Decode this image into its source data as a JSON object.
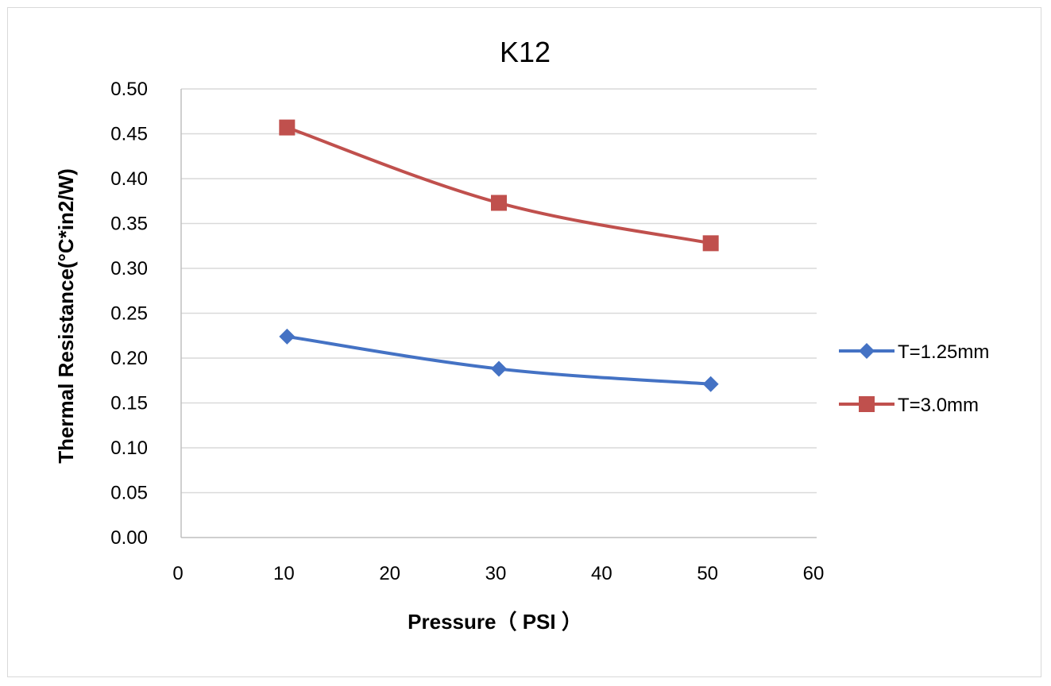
{
  "chart_data": {
    "type": "line",
    "title": "K12",
    "xlabel": "Pressure（ PSI ）",
    "ylabel": "Thermal Resistance(°C*in2/W)",
    "xlim": [
      0,
      60
    ],
    "ylim": [
      0,
      0.5
    ],
    "x_ticks": [
      "0",
      "10",
      "20",
      "30",
      "40",
      "50",
      "60"
    ],
    "y_ticks": [
      "0.00",
      "0.05",
      "0.10",
      "0.15",
      "0.20",
      "0.25",
      "0.30",
      "0.35",
      "0.40",
      "0.45",
      "0.50"
    ],
    "grid": true,
    "legend_position": "right",
    "series": [
      {
        "name": "T=1.25mm",
        "marker": "diamond",
        "color": "#4472C4",
        "x": [
          10,
          30,
          50
        ],
        "values": [
          0.224,
          0.188,
          0.171
        ]
      },
      {
        "name": "T=3.0mm",
        "marker": "square",
        "color": "#C0504D",
        "x": [
          10,
          30,
          50
        ],
        "values": [
          0.457,
          0.373,
          0.328
        ]
      }
    ]
  }
}
